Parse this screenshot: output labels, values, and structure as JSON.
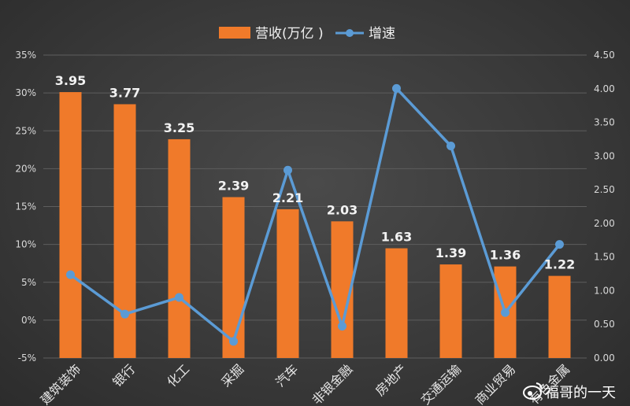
{
  "chart_data": {
    "type": "bar",
    "categories": [
      "建筑装饰",
      "银行",
      "化工",
      "采掘",
      "汽车",
      "非银金融",
      "房地产",
      "交通运输",
      "商业贸易",
      "有色金属"
    ],
    "series": [
      {
        "name": "营收(万亿 )",
        "type": "bar",
        "axis": "right",
        "values": [
          3.95,
          3.77,
          3.25,
          2.39,
          2.21,
          2.03,
          1.63,
          1.39,
          1.36,
          1.22
        ],
        "data_labels": [
          "3.95",
          "3.77",
          "3.25",
          "2.39",
          "2.21",
          "2.03",
          "1.63",
          "1.39",
          "1.36",
          "1.22"
        ]
      },
      {
        "name": "增速",
        "type": "line",
        "axis": "left",
        "values": [
          6.0,
          0.8,
          3.0,
          -2.8,
          19.8,
          -0.8,
          30.6,
          23.0,
          1.0,
          10.0
        ]
      }
    ],
    "y_left": {
      "ticks": [
        "-5%",
        "0%",
        "5%",
        "10%",
        "15%",
        "20%",
        "25%",
        "30%",
        "35%"
      ],
      "min": -5,
      "max": 35
    },
    "y_right": {
      "ticks": [
        "0.00",
        "0.50",
        "1.00",
        "1.50",
        "2.00",
        "2.50",
        "3.00",
        "3.50",
        "4.00",
        "4.50"
      ],
      "min": 0,
      "max": 4.5
    },
    "grid": true,
    "legend_position": "top-center",
    "colors": {
      "bar": "#f07a2a",
      "line": "#5b9bd5"
    }
  },
  "watermark": {
    "text": "福哥的一天",
    "icon": "weibo-icon"
  }
}
